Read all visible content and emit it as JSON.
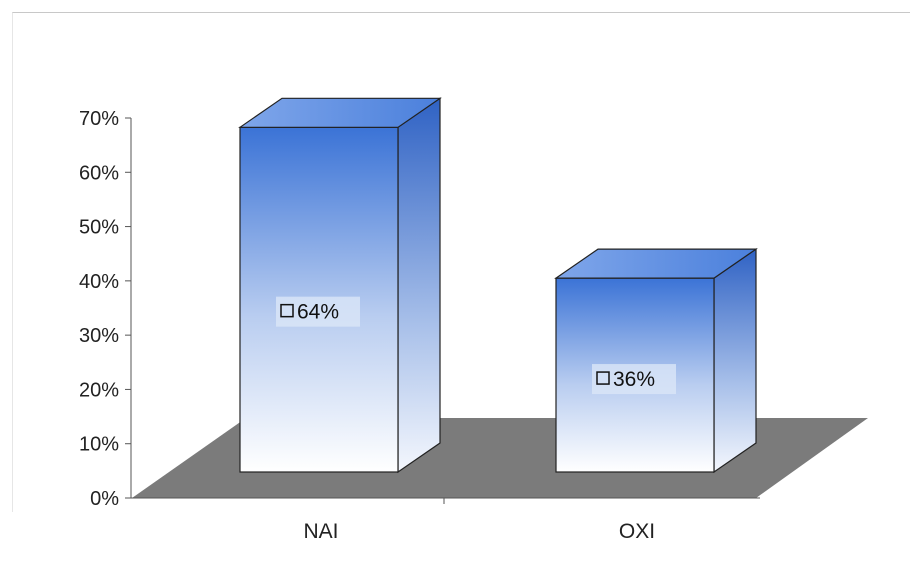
{
  "chart_data": {
    "type": "bar",
    "categories": [
      "NAI",
      "OXI"
    ],
    "values": [
      64,
      36
    ],
    "data_labels": [
      "64%",
      "36%"
    ],
    "y_ticks": [
      "0%",
      "10%",
      "20%",
      "30%",
      "40%",
      "50%",
      "60%",
      "70%"
    ],
    "ylim": [
      0,
      70
    ],
    "title": "",
    "xlabel": "",
    "ylabel": "",
    "grid": false,
    "legend": "none",
    "colors": {
      "bar_top": "#3b73d6",
      "bar_bottom": "#ffffff",
      "floor": "#7b7b7b"
    }
  }
}
